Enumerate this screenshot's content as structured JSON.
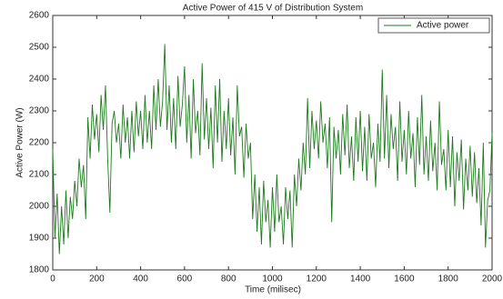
{
  "chart_data": {
    "type": "line",
    "title": "Active Power of 415 V of Distribution System",
    "xlabel": "Time (milisec)",
    "ylabel": "Active Power (W)",
    "xlim": [
      0,
      2000
    ],
    "xticks": [
      0,
      200,
      400,
      600,
      800,
      1000,
      1200,
      1400,
      1600,
      1800,
      2000
    ],
    "ylim": [
      1800,
      2600
    ],
    "yticks": [
      1800,
      1900,
      2000,
      2100,
      2200,
      2300,
      2400,
      2500,
      2600
    ],
    "legend": "upper right",
    "x": [
      0,
      10,
      20,
      30,
      40,
      50,
      60,
      70,
      80,
      90,
      100,
      110,
      120,
      130,
      140,
      150,
      160,
      170,
      180,
      190,
      200,
      210,
      220,
      230,
      240,
      250,
      260,
      270,
      280,
      290,
      300,
      310,
      320,
      330,
      340,
      350,
      360,
      370,
      380,
      390,
      400,
      410,
      420,
      430,
      440,
      450,
      460,
      470,
      480,
      490,
      500,
      510,
      520,
      530,
      540,
      550,
      560,
      570,
      580,
      590,
      600,
      610,
      620,
      630,
      640,
      650,
      660,
      670,
      680,
      690,
      700,
      710,
      720,
      730,
      740,
      750,
      760,
      770,
      780,
      790,
      800,
      810,
      820,
      830,
      840,
      850,
      860,
      870,
      880,
      890,
      900,
      910,
      920,
      930,
      940,
      950,
      960,
      970,
      980,
      990,
      1000,
      1010,
      1020,
      1030,
      1040,
      1050,
      1060,
      1070,
      1080,
      1090,
      1100,
      1110,
      1120,
      1130,
      1140,
      1150,
      1160,
      1170,
      1180,
      1190,
      1200,
      1210,
      1220,
      1230,
      1240,
      1250,
      1260,
      1270,
      1280,
      1290,
      1300,
      1310,
      1320,
      1330,
      1340,
      1350,
      1360,
      1370,
      1380,
      1390,
      1400,
      1410,
      1420,
      1430,
      1440,
      1450,
      1460,
      1470,
      1480,
      1490,
      1500,
      1510,
      1520,
      1530,
      1540,
      1550,
      1560,
      1570,
      1580,
      1590,
      1600,
      1610,
      1620,
      1630,
      1640,
      1650,
      1660,
      1670,
      1680,
      1690,
      1700,
      1710,
      1720,
      1730,
      1740,
      1750,
      1760,
      1770,
      1780,
      1790,
      1800,
      1810,
      1820,
      1830,
      1840,
      1850,
      1860,
      1870,
      1880,
      1890,
      1900,
      1910,
      1920,
      1930,
      1940,
      1950,
      1960,
      1970,
      1980,
      1990,
      2000
    ],
    "series": [
      {
        "name": "Active power",
        "color": "#1e7a1e",
        "values": [
          2180,
          1900,
          2040,
          1850,
          2000,
          1880,
          2050,
          1900,
          2030,
          1960,
          2080,
          2000,
          2150,
          2060,
          2130,
          1960,
          2280,
          2150,
          2320,
          2210,
          2290,
          2170,
          2350,
          2240,
          2380,
          2150,
          1980,
          2260,
          2300,
          2200,
          2260,
          2150,
          2320,
          2200,
          2280,
          2150,
          2300,
          2170,
          2330,
          2220,
          2300,
          2180,
          2350,
          2200,
          2300,
          2180,
          2380,
          2240,
          2400,
          2250,
          2330,
          2510,
          2240,
          2380,
          2200,
          2340,
          2180,
          2410,
          2250,
          2320,
          2440,
          2200,
          2350,
          2150,
          2400,
          2230,
          2300,
          2160,
          2450,
          2210,
          2340,
          2180,
          2310,
          2120,
          2380,
          2200,
          2400,
          2140,
          2300,
          2180,
          2340,
          2160,
          2280,
          2100,
          2380,
          2220,
          2250,
          2090,
          2260,
          2150,
          2200,
          1960,
          2100,
          1920,
          2060,
          1880,
          2080,
          1950,
          2020,
          1870,
          2060,
          1920,
          2100,
          1950,
          2000,
          1880,
          2060,
          1960,
          2050,
          1870,
          2100,
          2000,
          2150,
          2050,
          2200,
          2100,
          2340,
          2120,
          2300,
          2180,
          2270,
          2150,
          2330,
          2200,
          2260,
          2120,
          2280,
          1950,
          2250,
          2150,
          2240,
          2100,
          2290,
          2160,
          2320,
          2120,
          2220,
          2080,
          2280,
          2140,
          2300,
          2110,
          2250,
          2080,
          2290,
          2150,
          2200,
          2060,
          2260,
          2140,
          2430,
          2150,
          2350,
          2120,
          2290,
          2180,
          2250,
          2080,
          2330,
          2140,
          2240,
          2100,
          2300,
          2150,
          2230,
          2060,
          2280,
          2130,
          2350,
          2100,
          2220,
          2080,
          2270,
          2110,
          2200,
          2050,
          2330,
          2130,
          2180,
          2050,
          2240,
          2060,
          2220,
          2000,
          2170,
          2080,
          2210,
          1990,
          2150,
          2050,
          2190,
          2030,
          2170,
          2010,
          2120,
          1940,
          2200,
          1870,
          2020,
          2050,
          2230
        ]
      }
    ]
  }
}
